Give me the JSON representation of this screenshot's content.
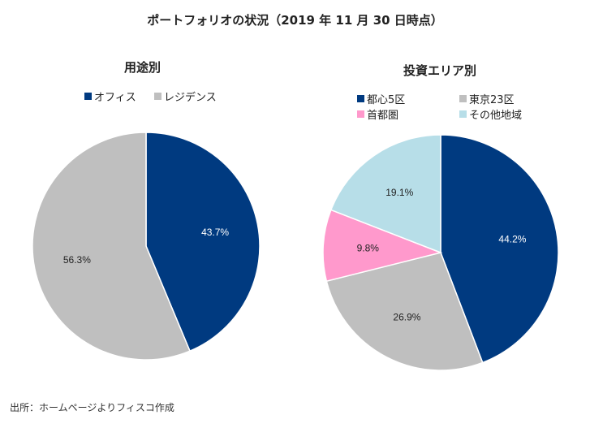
{
  "chart_data": [
    {
      "type": "pie",
      "title": "用途別",
      "slices": [
        {
          "name": "オフィス",
          "value": 43.7,
          "label": "43.7%",
          "color": "#003A80",
          "label_color": "#ffffff"
        },
        {
          "name": "レジデンス",
          "value": 56.3,
          "label": "56.3%",
          "color": "#BFBFBF",
          "label_color": "#222222"
        }
      ],
      "start": "top",
      "direction": "clockwise",
      "legend": "top"
    },
    {
      "type": "pie",
      "title": "投資エリア別",
      "slices": [
        {
          "name": "都心5区",
          "value": 44.2,
          "label": "44.2%",
          "color": "#003A80",
          "label_color": "#ffffff"
        },
        {
          "name": "東京23区",
          "value": 26.9,
          "label": "26.9%",
          "color": "#BFBFBF",
          "label_color": "#222222"
        },
        {
          "name": "首都圏",
          "value": 9.8,
          "label": "9.8%",
          "color": "#FF99CC",
          "label_color": "#222222"
        },
        {
          "name": "その他地域",
          "value": 19.1,
          "label": "19.1%",
          "color": "#B7DEE8",
          "label_color": "#222222"
        }
      ],
      "start": "top",
      "direction": "clockwise",
      "legend": "top"
    }
  ],
  "title": "ポートフォリオの状況（2019 年 11 月 30 日時点）",
  "source": "出所：ホームページよりフィスコ作成"
}
